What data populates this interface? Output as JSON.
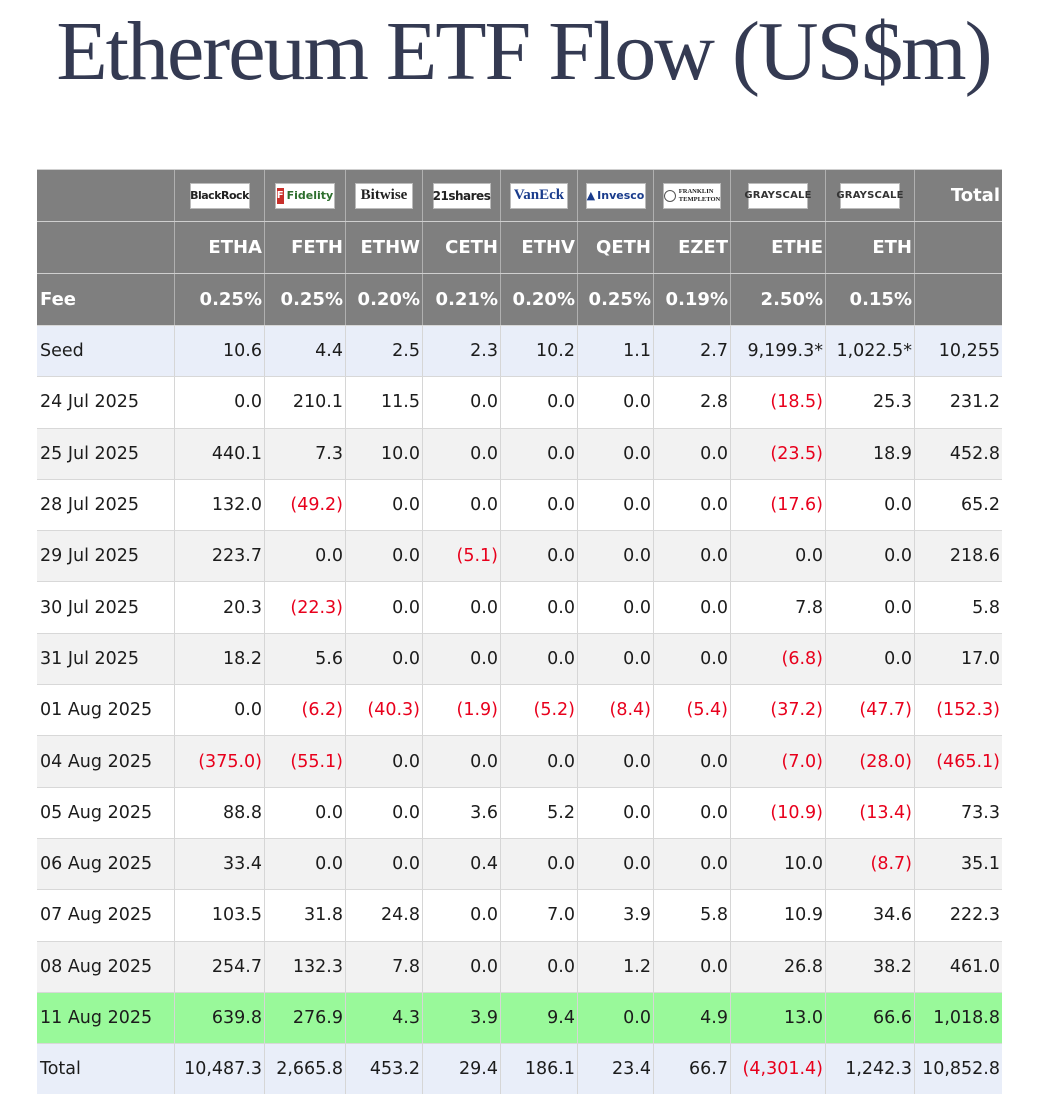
{
  "title": "Ethereum ETF Flow (US$m)",
  "logos": {
    "blackrock": "BlackRock",
    "fidelity_mark": "F",
    "fidelity": "Fidelity",
    "bitwise": "Bitwise",
    "shares21": "21shares",
    "vaneck": "VanEck",
    "invesco": "Invesco",
    "franklin_line1": "FRANKLIN",
    "franklin_line2": "TEMPLETON",
    "grayscale_ethe": "GRAYSCALE",
    "grayscale_eth": "GRAYSCALE",
    "total": "Total"
  },
  "tickers": [
    "ETHA",
    "FETH",
    "ETHW",
    "CETH",
    "ETHV",
    "QETH",
    "EZET",
    "ETHE",
    "ETH"
  ],
  "fee_label": "Fee",
  "fees": [
    "0.25%",
    "0.25%",
    "0.20%",
    "0.21%",
    "0.20%",
    "0.25%",
    "0.19%",
    "2.50%",
    "0.15%"
  ],
  "rows": [
    {
      "label": "Seed",
      "values": [
        "10.6",
        "4.4",
        "2.5",
        "2.3",
        "10.2",
        "1.1",
        "2.7",
        "9,199.3*",
        "1,022.5*",
        "10,255"
      ]
    },
    {
      "label": "24 Jul 2025",
      "values": [
        "0.0",
        "210.1",
        "11.5",
        "0.0",
        "0.0",
        "0.0",
        "2.8",
        "(18.5)",
        "25.3",
        "231.2"
      ]
    },
    {
      "label": "25 Jul 2025",
      "values": [
        "440.1",
        "7.3",
        "10.0",
        "0.0",
        "0.0",
        "0.0",
        "0.0",
        "(23.5)",
        "18.9",
        "452.8"
      ]
    },
    {
      "label": "28 Jul 2025",
      "values": [
        "132.0",
        "(49.2)",
        "0.0",
        "0.0",
        "0.0",
        "0.0",
        "0.0",
        "(17.6)",
        "0.0",
        "65.2"
      ]
    },
    {
      "label": "29 Jul 2025",
      "values": [
        "223.7",
        "0.0",
        "0.0",
        "(5.1)",
        "0.0",
        "0.0",
        "0.0",
        "0.0",
        "0.0",
        "218.6"
      ]
    },
    {
      "label": "30 Jul 2025",
      "values": [
        "20.3",
        "(22.3)",
        "0.0",
        "0.0",
        "0.0",
        "0.0",
        "0.0",
        "7.8",
        "0.0",
        "5.8"
      ]
    },
    {
      "label": "31 Jul 2025",
      "values": [
        "18.2",
        "5.6",
        "0.0",
        "0.0",
        "0.0",
        "0.0",
        "0.0",
        "(6.8)",
        "0.0",
        "17.0"
      ]
    },
    {
      "label": "01 Aug 2025",
      "values": [
        "0.0",
        "(6.2)",
        "(40.3)",
        "(1.9)",
        "(5.2)",
        "(8.4)",
        "(5.4)",
        "(37.2)",
        "(47.7)",
        "(152.3)"
      ]
    },
    {
      "label": "04 Aug 2025",
      "values": [
        "(375.0)",
        "(55.1)",
        "0.0",
        "0.0",
        "0.0",
        "0.0",
        "0.0",
        "(7.0)",
        "(28.0)",
        "(465.1)"
      ]
    },
    {
      "label": "05 Aug 2025",
      "values": [
        "88.8",
        "0.0",
        "0.0",
        "3.6",
        "5.2",
        "0.0",
        "0.0",
        "(10.9)",
        "(13.4)",
        "73.3"
      ]
    },
    {
      "label": "06 Aug 2025",
      "values": [
        "33.4",
        "0.0",
        "0.0",
        "0.4",
        "0.0",
        "0.0",
        "0.0",
        "10.0",
        "(8.7)",
        "35.1"
      ]
    },
    {
      "label": "07 Aug 2025",
      "values": [
        "103.5",
        "31.8",
        "24.8",
        "0.0",
        "7.0",
        "3.9",
        "5.8",
        "10.9",
        "34.6",
        "222.3"
      ]
    },
    {
      "label": "08 Aug 2025",
      "values": [
        "254.7",
        "132.3",
        "7.8",
        "0.0",
        "0.0",
        "1.2",
        "0.0",
        "26.8",
        "38.2",
        "461.0"
      ]
    },
    {
      "label": "11 Aug 2025",
      "values": [
        "639.8",
        "276.9",
        "4.3",
        "3.9",
        "9.4",
        "0.0",
        "4.9",
        "13.0",
        "66.6",
        "1,018.8"
      ]
    },
    {
      "label": "Total",
      "values": [
        "10,487.3",
        "2,665.8",
        "453.2",
        "29.4",
        "186.1",
        "23.4",
        "66.7",
        "(4,301.4)",
        "1,242.3",
        "10,852.8"
      ]
    }
  ],
  "colors": {
    "header_bg": "#7f7f7f",
    "seed_bg": "#e9eef9",
    "latest_bg": "#99f99a",
    "negative": "#e8001c",
    "title": "#343a52"
  }
}
